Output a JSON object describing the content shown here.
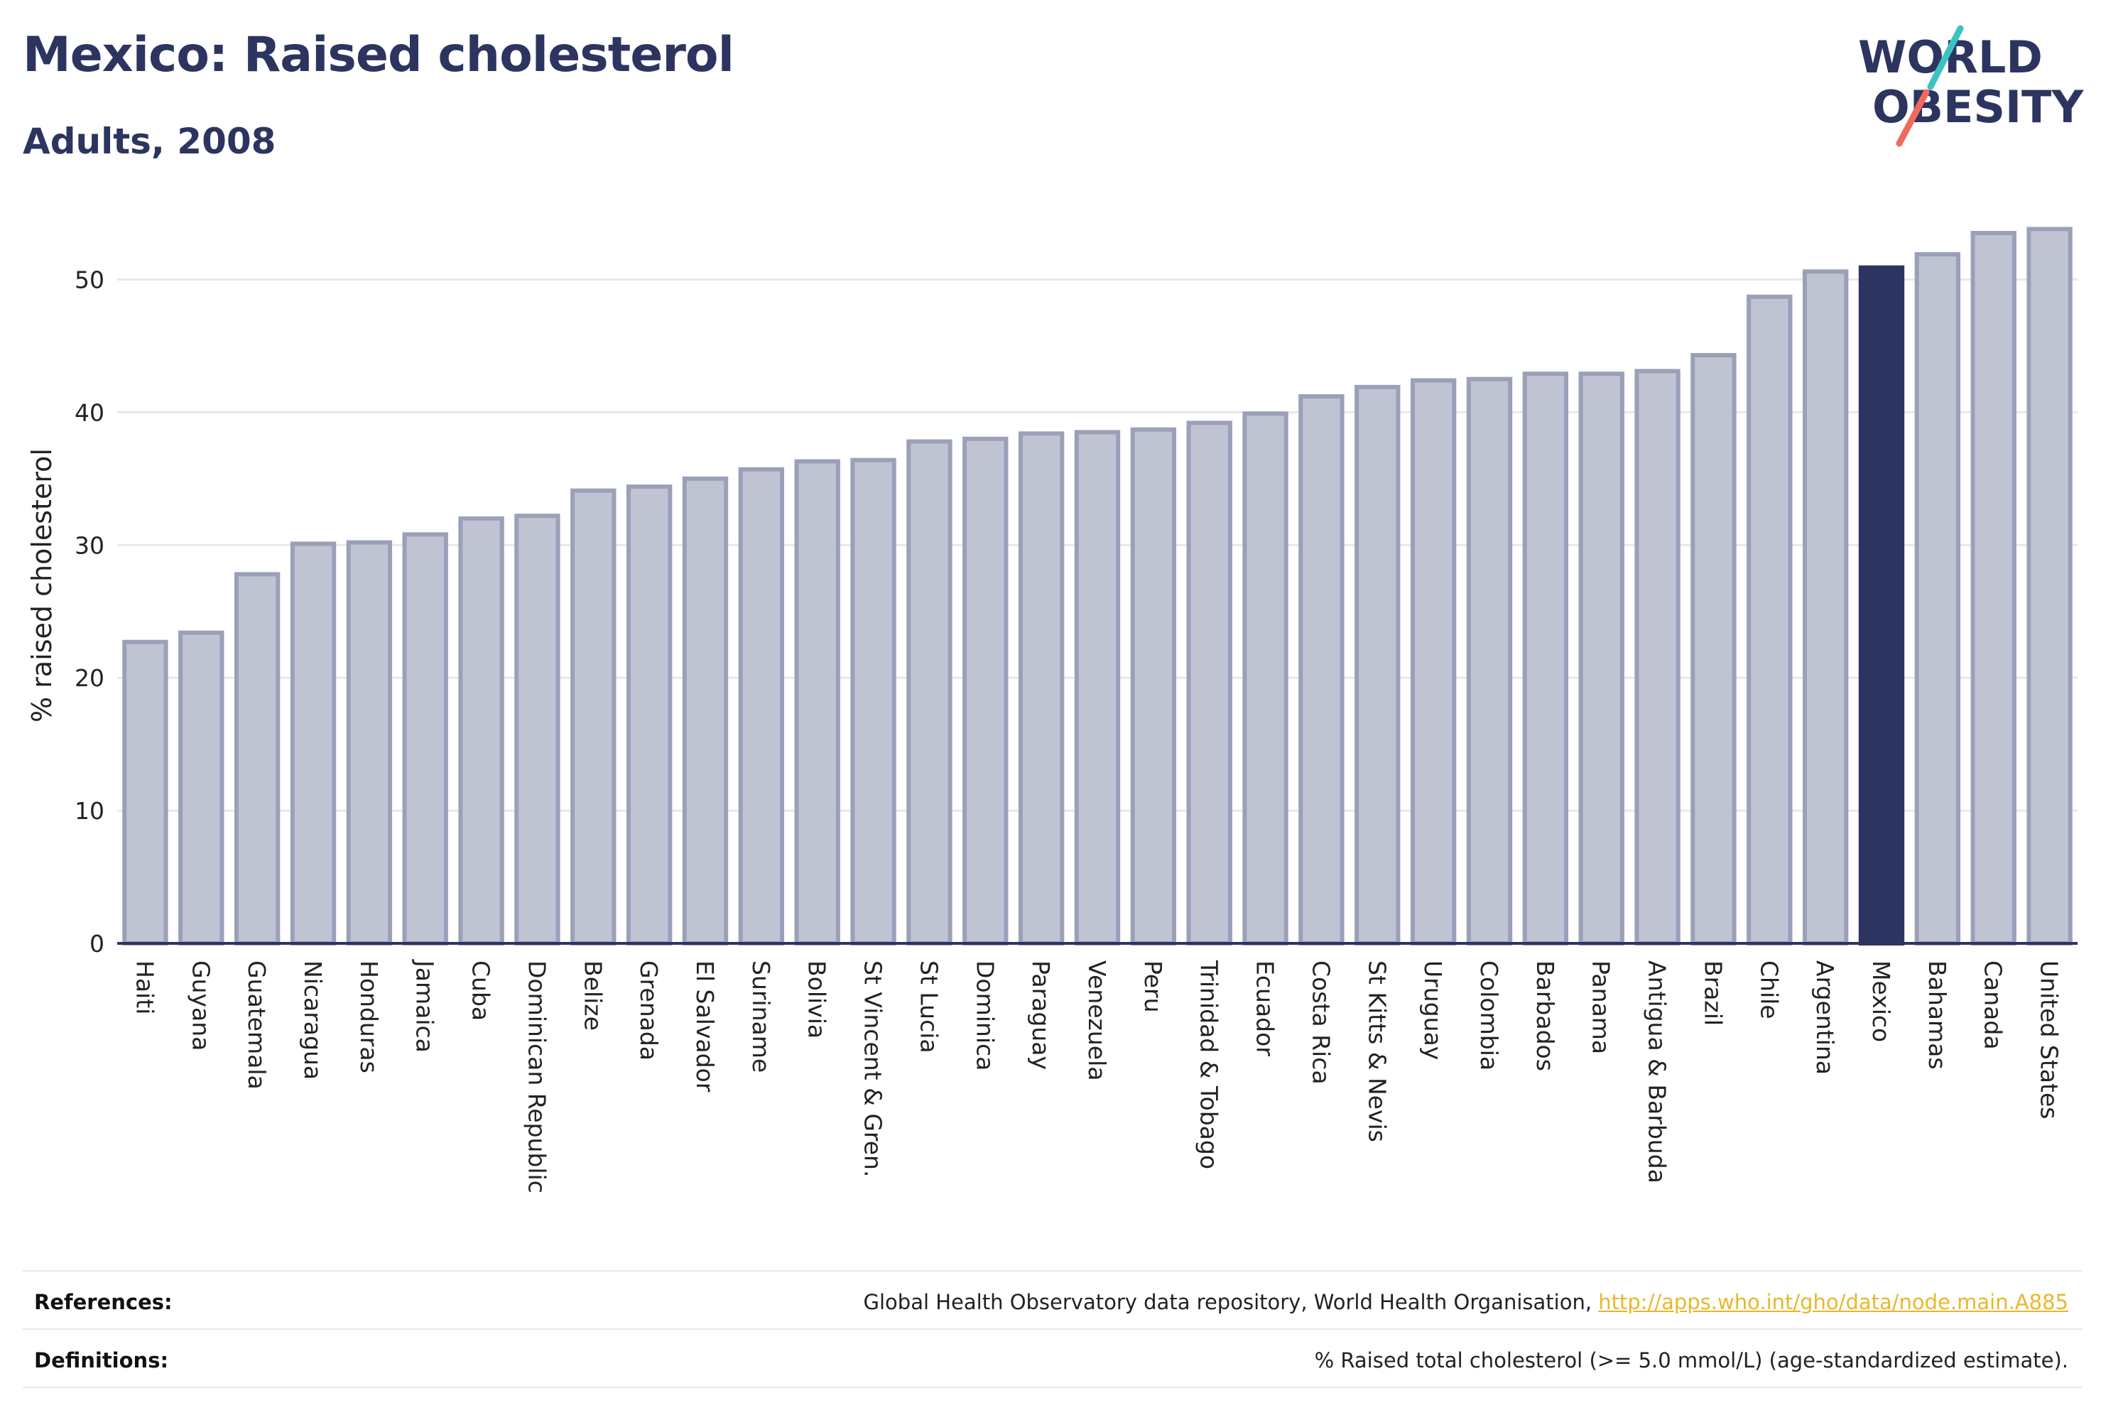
{
  "header": {
    "title": "Mexico: Raised cholesterol",
    "subtitle": "Adults, 2008"
  },
  "logo": {
    "line1": "WORLD",
    "line2": "OBESITY",
    "text_color": "#2c3560",
    "slash_colors": [
      "#3ec1c3",
      "#ef6a5a"
    ]
  },
  "chart_data": {
    "type": "bar",
    "ylabel": "% raised cholesterol",
    "ylim": [
      0,
      55
    ],
    "yticks": [
      0,
      10,
      20,
      30,
      40,
      50
    ],
    "grid": true,
    "highlight": "Mexico",
    "colors": {
      "bar": "#c0c3d1",
      "bar_border": "#9aa0b8",
      "highlight": "#2c3560",
      "grid": "#e6e8ee",
      "axis": "#2c3560"
    },
    "categories": [
      "Haiti",
      "Guyana",
      "Guatemala",
      "Nicaragua",
      "Honduras",
      "Jamaica",
      "Cuba",
      "Dominican Republic",
      "Belize",
      "Grenada",
      "El Salvador",
      "Suriname",
      "Bolivia",
      "St Vincent & Gren.",
      "St Lucia",
      "Dominica",
      "Paraguay",
      "Venezuela",
      "Peru",
      "Trinidad & Tobago",
      "Ecuador",
      "Costa Rica",
      "St Kitts & Nevis",
      "Uruguay",
      "Colombia",
      "Barbados",
      "Panama",
      "Antigua & Barbuda",
      "Brazil",
      "Chile",
      "Argentina",
      "Mexico",
      "Bahamas",
      "Canada",
      "United States"
    ],
    "values": [
      22.7,
      23.4,
      27.8,
      30.1,
      30.2,
      30.8,
      32.0,
      32.2,
      34.1,
      34.4,
      35.0,
      35.7,
      36.3,
      36.4,
      37.8,
      38.0,
      38.4,
      38.5,
      38.7,
      39.2,
      39.9,
      41.2,
      41.9,
      42.4,
      42.5,
      42.9,
      42.9,
      43.1,
      44.3,
      48.7,
      50.6,
      50.9,
      51.9,
      53.5,
      53.8
    ]
  },
  "footer": {
    "references_label": "References:",
    "references_text": "Global Health Observatory data repository, World Health Organisation,",
    "references_link": "http://apps.who.int/gho/data/node.main.A885",
    "definitions_label": "Definitions:",
    "definitions_text": "% Raised total cholesterol (>= 5.0 mmol/L) (age-standardized estimate)."
  }
}
